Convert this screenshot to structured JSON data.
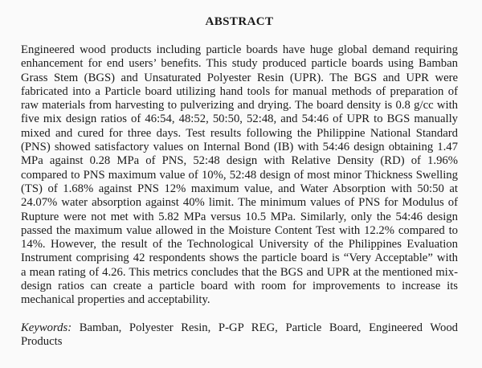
{
  "document": {
    "title": "ABSTRACT",
    "abstract_lines": [
      "Engineered wood products including particle boards have huge global demand requiring",
      "enhancement for end users’ benefits. This study produced particle boards using Bamban",
      "Grass Stem (BGS) and Unsaturated Polyester Resin (UPR). The BGS and UPR were",
      "fabricated into a Particle board utilizing hand tools for manual methods of preparation of",
      "raw materials from harvesting to pulverizing and drying. The board density is 0.8 g/cc with",
      "five mix design ratios of 46:54, 48:52, 50:50, 52:48, and 54:46 of UPR to BGS manually",
      "mixed and cured for three days. Test results following the Philippine National Standard",
      "(PNS) showed satisfactory values on Internal Bond (IB) with 54:46 design obtaining 1.47",
      "MPa against 0.28 MPa of PNS, 52:48 design with Relative Density (RD) of 1.96%",
      "compared to PNS maximum value of 10%, 52:48 design of most minor Thickness Swelling",
      "(TS) of 1.68% against PNS 12% maximum value, and Water Absorption with 50:50 at",
      "24.07% water absorption against 40% limit. The minimum values of PNS for Modulus of",
      "Rupture were not met with 5.82 MPa versus 10.5 MPa. Similarly, only the 54:46 design",
      "passed the maximum value allowed in the Moisture Content Test with 12.2% compared to",
      "14%. However, the result of the Technological University of the Philippines Evaluation",
      "Instrument comprising 42 respondents shows the particle board is “Very Acceptable” with",
      "a mean rating of 4.26. This metrics concludes that the BGS and UPR at the mentioned mix-",
      "design ratios can create a particle board with room for improvements to increase its",
      "mechanical properties and acceptability."
    ],
    "keywords": {
      "label": "Keywords:",
      "line1": "Bamban, Polyester Resin, P-GP REG, Particle Board, Engineered Wood",
      "line2": "Products"
    },
    "colors": {
      "background": "#fafafa",
      "text": "#1b1b1b"
    }
  }
}
